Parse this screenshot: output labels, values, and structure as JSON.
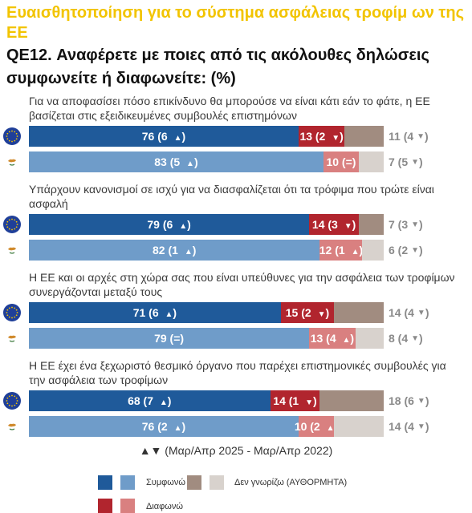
{
  "header": {
    "title": "Ευαισθητοποίηση για το σύστημα ασφάλειας τροφίμ ων της ΕΕ",
    "question_code": "QE12.",
    "question_text": "Αναφέρετε με ποιες από τις ακόλουθες δηλώσεις συμφωνείτε ή διαφωνείτε: (%)"
  },
  "colors": {
    "agree_eu": "#1f5a9a",
    "agree_cy": "#6f9cc9",
    "disagree_eu": "#b1252e",
    "disagree_cy": "#d98080",
    "dontknow_eu": "#a18c80",
    "dontknow_cy": "#d8d2cd"
  },
  "chart_data": {
    "type": "bar",
    "orientation": "horizontal-stacked",
    "series_labels": [
      "Συμφωνώ",
      "Διαφωνώ",
      "Δεν γνωρίζω (ΑΥΘΟΡΜΗΤΑ)"
    ],
    "groups": [
      {
        "statement": "Για να αποφασίσει πόσο επικίνδυνο θα μπορούσε να είναι κάτι εάν το φάτε, η ΕΕ βασίζεται στις εξειδικευμένες συμβουλές επιστημόνων",
        "rows": [
          {
            "region": "EU",
            "flag": "eu-flag-icon",
            "agree": 76,
            "agree_label": "76 (6 ▲)",
            "disagree": 13,
            "disagree_label": "13 (2 ▼)",
            "dontknow": 11,
            "dontknow_label": "11 (4 ▼)"
          },
          {
            "region": "CY",
            "flag": "cyprus-flag-icon",
            "agree": 83,
            "agree_label": "83 (5 ▲)",
            "disagree": 10,
            "disagree_label": "10 (=)",
            "dontknow": 7,
            "dontknow_label": "7 (5 ▼)"
          }
        ]
      },
      {
        "statement": "Υπάρχουν κανονισμοί σε ισχύ για να διασφαλίζεται ότι τα τρόφιμα που τρώτε είναι ασφαλή",
        "rows": [
          {
            "region": "EU",
            "flag": "eu-flag-icon",
            "agree": 79,
            "agree_label": "79 (6 ▲)",
            "disagree": 14,
            "disagree_label": "14 (3 ▼)",
            "dontknow": 7,
            "dontknow_label": "7 (3 ▼)"
          },
          {
            "region": "CY",
            "flag": "cyprus-flag-icon",
            "agree": 82,
            "agree_label": "82 (1 ▲)",
            "disagree": 12,
            "disagree_label": "12 (1 ▲)",
            "dontknow": 6,
            "dontknow_label": "6 (2 ▼)"
          }
        ]
      },
      {
        "statement": "Η ΕΕ και οι αρχές στη χώρα σας που είναι υπεύθυνες για την ασφάλεια των τροφίμων συνεργάζονται μεταξύ τους",
        "rows": [
          {
            "region": "EU",
            "flag": "eu-flag-icon",
            "agree": 71,
            "agree_label": "71 (6 ▲)",
            "disagree": 15,
            "disagree_label": "15 (2 ▼)",
            "dontknow": 14,
            "dontknow_label": "14 (4 ▼)"
          },
          {
            "region": "CY",
            "flag": "cyprus-flag-icon",
            "agree": 79,
            "agree_label": "79 (=)",
            "disagree": 13,
            "disagree_label": "13 (4 ▲)",
            "dontknow": 8,
            "dontknow_label": "8 (4 ▼)"
          }
        ]
      },
      {
        "statement": "Η ΕΕ έχει ένα ξεχωριστό θεσμικό όργανο που παρέχει επιστημονικές συμβουλές για την ασφάλεια των τροφίμων",
        "rows": [
          {
            "region": "EU",
            "flag": "eu-flag-icon",
            "agree": 68,
            "agree_label": "68 (7 ▲)",
            "disagree": 14,
            "disagree_label": "14 (1 ▼)",
            "dontknow": 18,
            "dontknow_label": "18 (6 ▼)"
          },
          {
            "region": "CY",
            "flag": "cyprus-flag-icon",
            "agree": 76,
            "agree_label": "76 (2 ▲)",
            "disagree": 10,
            "disagree_label": "10 (2 ▲)",
            "dontknow": 14,
            "dontknow_label": "14 (4 ▼)"
          }
        ]
      }
    ]
  },
  "footnote": "▲▼ (Μαρ/Απρ 2025 - Μαρ/Απρ 2022)",
  "legend": {
    "agree": "Συμφωνώ",
    "dontknow": "Δεν γνωρίζω (ΑΥΘΟΡΜΗΤΑ)",
    "disagree": "Διαφωνώ"
  }
}
